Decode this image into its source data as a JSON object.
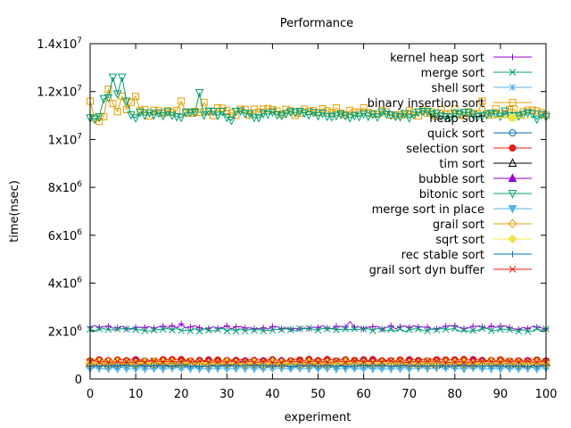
{
  "chart_data": {
    "type": "line",
    "title": "Performance",
    "xlabel": "experiment",
    "ylabel": "time(nsec)",
    "xlim": [
      0,
      100
    ],
    "ylim": [
      0,
      14000000
    ],
    "xticks": [
      0,
      10,
      20,
      30,
      40,
      50,
      60,
      70,
      80,
      90,
      100
    ],
    "yticks": [
      {
        "value": 0,
        "mant": "0",
        "exp": ""
      },
      {
        "value": 2000000,
        "mant": "2x10",
        "exp": "6"
      },
      {
        "value": 4000000,
        "mant": "4x10",
        "exp": "6"
      },
      {
        "value": 6000000,
        "mant": "6x10",
        "exp": "6"
      },
      {
        "value": 8000000,
        "mant": "8x10",
        "exp": "6"
      },
      {
        "value": 10000000,
        "mant": "1x10",
        "exp": "7"
      },
      {
        "value": 12000000,
        "mant": "1.2x10",
        "exp": "7"
      },
      {
        "value": 14000000,
        "mant": "1.4x10",
        "exp": "7"
      }
    ],
    "grid": false,
    "legend_position": "top-right",
    "series": [
      {
        "name": "kernel heap sort",
        "color": "#9400d3",
        "marker": "plus",
        "base": 2150000,
        "noise": 80000
      },
      {
        "name": "merge sort",
        "color": "#009e73",
        "marker": "x",
        "base": 2050000,
        "noise": 70000
      },
      {
        "name": "shell sort",
        "color": "#56b4e9",
        "marker": "star",
        "base": 520000,
        "noise": 30000
      },
      {
        "name": "binary insertion sort",
        "color": "#e69f00",
        "marker": "square",
        "base": 11150000,
        "noise": 180000
      },
      {
        "name": "heap sort",
        "color": "#f0e442",
        "marker": "filled-square",
        "base": 700000,
        "noise": 40000
      },
      {
        "name": "quick sort",
        "color": "#0072b2",
        "marker": "circle",
        "base": 600000,
        "noise": 30000
      },
      {
        "name": "selection sort",
        "color": "#e51e10",
        "marker": "filled-circle",
        "base": 780000,
        "noise": 40000
      },
      {
        "name": "tim sort",
        "color": "#000000",
        "marker": "triangle",
        "base": 650000,
        "noise": 30000
      },
      {
        "name": "bubble sort",
        "color": "#9400d3",
        "marker": "filled-triangle",
        "base": 700000,
        "noise": 40000
      },
      {
        "name": "bitonic sort",
        "color": "#009e73",
        "marker": "inv-triangle",
        "base": 11050000,
        "noise": 150000
      },
      {
        "name": "merge sort in place",
        "color": "#56b4e9",
        "marker": "filled-inv-triangle",
        "base": 450000,
        "noise": 25000
      },
      {
        "name": "grail sort",
        "color": "#e69f00",
        "marker": "diamond",
        "base": 620000,
        "noise": 30000
      },
      {
        "name": "sqrt sort",
        "color": "#f0e442",
        "marker": "filled-diamond",
        "base": 680000,
        "noise": 35000
      },
      {
        "name": "rec stable sort",
        "color": "#0072b2",
        "marker": "plus",
        "base": 550000,
        "noise": 25000
      },
      {
        "name": "grail sort dyn buffer",
        "color": "#e51e10",
        "marker": "x",
        "base": 720000,
        "noise": 35000
      }
    ]
  }
}
